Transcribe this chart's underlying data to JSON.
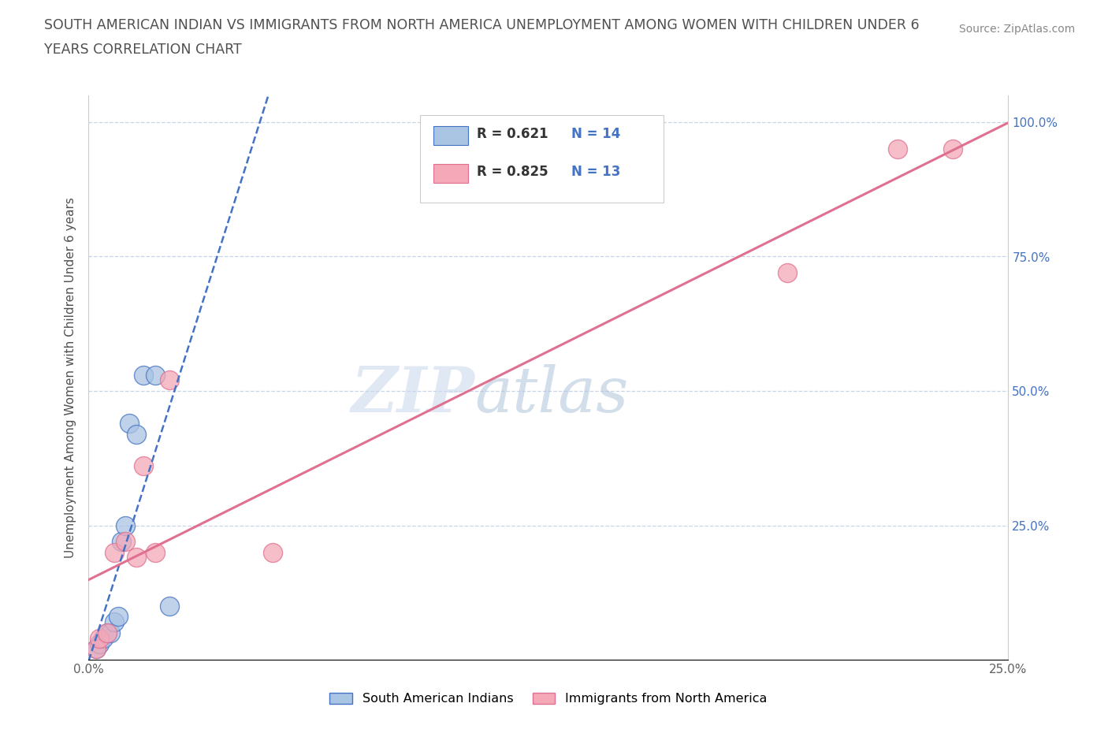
{
  "title_line1": "SOUTH AMERICAN INDIAN VS IMMIGRANTS FROM NORTH AMERICA UNEMPLOYMENT AMONG WOMEN WITH CHILDREN UNDER 6",
  "title_line2": "YEARS CORRELATION CHART",
  "source": "Source: ZipAtlas.com",
  "ylabel": "Unemployment Among Women with Children Under 6 years",
  "xlim": [
    0.0,
    0.25
  ],
  "ylim": [
    0.0,
    1.05
  ],
  "yticks": [
    0.0,
    0.25,
    0.5,
    0.75,
    1.0
  ],
  "yticklabels_right": [
    "",
    "25.0%",
    "50.0%",
    "75.0%",
    "100.0%"
  ],
  "xticks": [
    0.0,
    0.05,
    0.1,
    0.15,
    0.2,
    0.25
  ],
  "xticklabels": [
    "0.0%",
    "",
    "",
    "",
    "",
    "25.0%"
  ],
  "blue_scatter_x": [
    0.002,
    0.003,
    0.004,
    0.005,
    0.006,
    0.007,
    0.008,
    0.009,
    0.01,
    0.011,
    0.013,
    0.015,
    0.018,
    0.022
  ],
  "blue_scatter_y": [
    0.02,
    0.03,
    0.04,
    0.05,
    0.05,
    0.07,
    0.08,
    0.22,
    0.25,
    0.44,
    0.42,
    0.53,
    0.53,
    0.1
  ],
  "pink_scatter_x": [
    0.002,
    0.003,
    0.005,
    0.007,
    0.01,
    0.013,
    0.015,
    0.018,
    0.022,
    0.05,
    0.19,
    0.22,
    0.235
  ],
  "pink_scatter_y": [
    0.02,
    0.04,
    0.05,
    0.2,
    0.22,
    0.19,
    0.36,
    0.2,
    0.52,
    0.2,
    0.72,
    0.95,
    0.95
  ],
  "blue_R": 0.621,
  "blue_N": 14,
  "pink_R": 0.825,
  "pink_N": 13,
  "blue_scatter_color": "#aac4e4",
  "pink_scatter_color": "#f4a8b8",
  "blue_line_color": "#4472c4",
  "pink_line_color": "#e07090",
  "grid_color": "#c8d4e8",
  "watermark_zip_color": "#c8d8e8",
  "watermark_atlas_color": "#b8c8d8",
  "title_color": "#505050",
  "source_color": "#888888",
  "tick_label_color_blue": "#4472c4",
  "tick_label_color_dark": "#606060",
  "legend_label_blue": "South American Indians",
  "legend_label_pink": "Immigrants from North America"
}
